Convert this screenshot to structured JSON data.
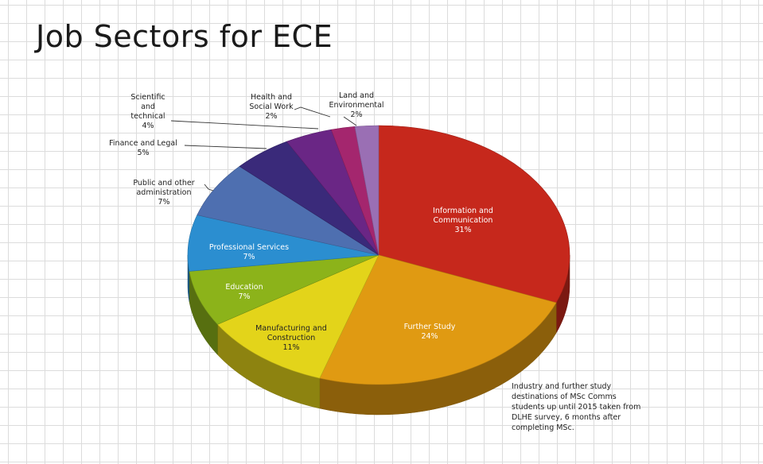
{
  "slide": {
    "title": "Job Sectors for ECE"
  },
  "chart_data": {
    "type": "pie",
    "style": "3d",
    "title": "",
    "slices": [
      {
        "label": [
          "Information and",
          "Communication"
        ],
        "value": 31,
        "color": "#c6281c",
        "label_position": "inside"
      },
      {
        "label": [
          "Further Study"
        ],
        "value": 24,
        "color": "#e09a12",
        "label_position": "inside"
      },
      {
        "label": [
          "Manufacturing and",
          "Construction"
        ],
        "value": 11,
        "color": "#e3d41a",
        "label_position": "inside"
      },
      {
        "label": [
          "Education"
        ],
        "value": 7,
        "color": "#8cb31a",
        "label_position": "inside"
      },
      {
        "label": [
          "Professional Services"
        ],
        "value": 7,
        "color": "#2b8ed0",
        "label_position": "inside"
      },
      {
        "label": [
          "Public and other",
          "administration"
        ],
        "value": 7,
        "color": "#4e6fb0",
        "label_position": "outside"
      },
      {
        "label": [
          "Finance and Legal"
        ],
        "value": 5,
        "color": "#3a2a7a",
        "label_position": "outside"
      },
      {
        "label": [
          "Scientific",
          "and",
          "technical"
        ],
        "value": 4,
        "color": "#6a2685",
        "label_position": "outside"
      },
      {
        "label": [
          "Health and",
          "Social Work"
        ],
        "value": 2,
        "color": "#a4266e",
        "label_position": "outside"
      },
      {
        "label": [
          "Land and",
          "Environmental"
        ],
        "value": 2,
        "color": "#9a6fb4",
        "label_position": "outside"
      }
    ],
    "value_suffix": "%"
  },
  "note": {
    "text": "Industry and further study destinations of MSc Comms students up until 2015 taken from DLHE survey, 6 months after completing MSc."
  }
}
